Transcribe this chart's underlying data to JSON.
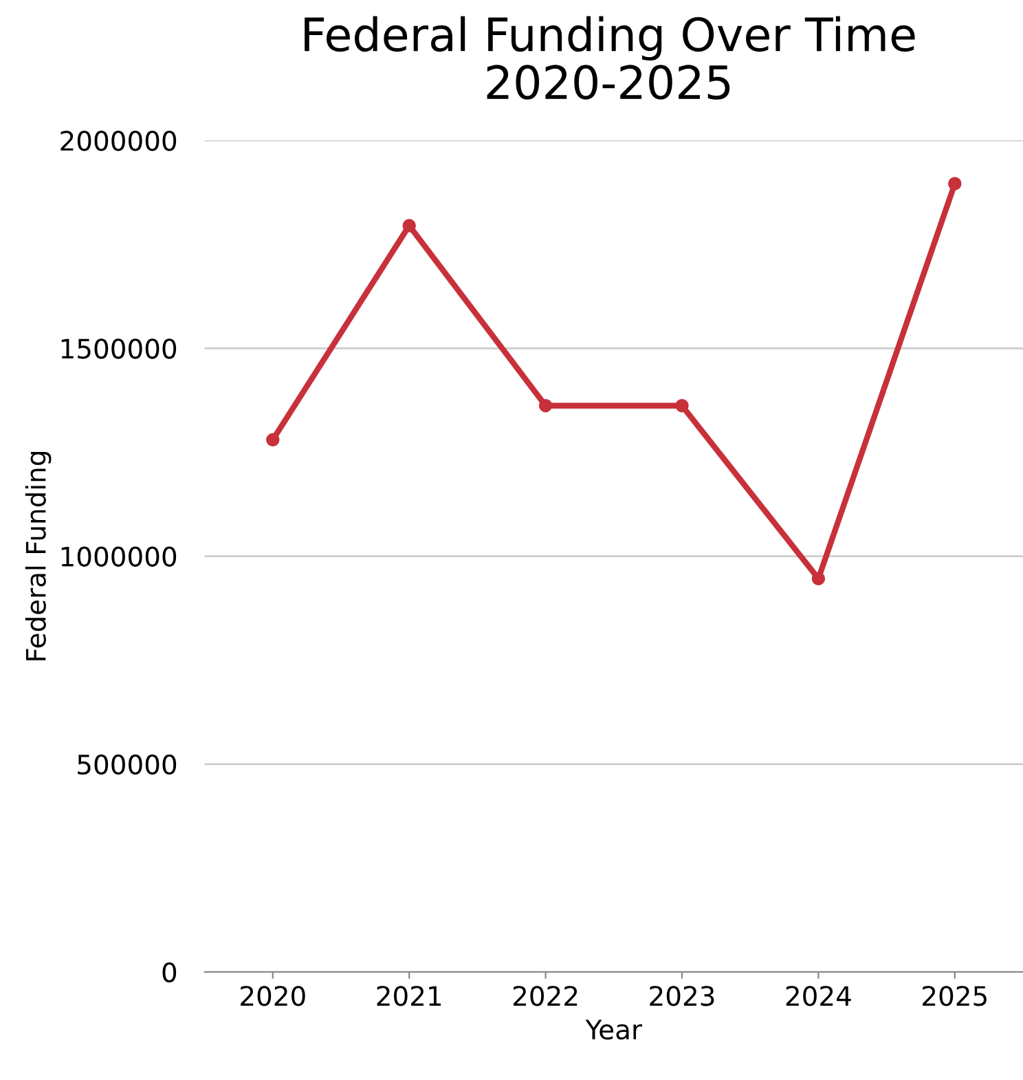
{
  "chart_data": {
    "type": "line",
    "title": "Federal Funding Over Time 2020-2025",
    "xlabel": "Year",
    "ylabel": "Federal Funding",
    "categories": [
      "2020",
      "2021",
      "2022",
      "2023",
      "2024",
      "2025"
    ],
    "series": [
      {
        "color": "#c8303a",
        "values": [
          1280000,
          1795000,
          1362000,
          1362000,
          946000,
          1896000
        ]
      }
    ],
    "ylim": [
      0,
      2000000
    ],
    "yticks": [
      0,
      500000,
      1000000,
      1500000,
      2000000
    ],
    "grid": "y",
    "marker": "circle",
    "line_style": "solid"
  }
}
